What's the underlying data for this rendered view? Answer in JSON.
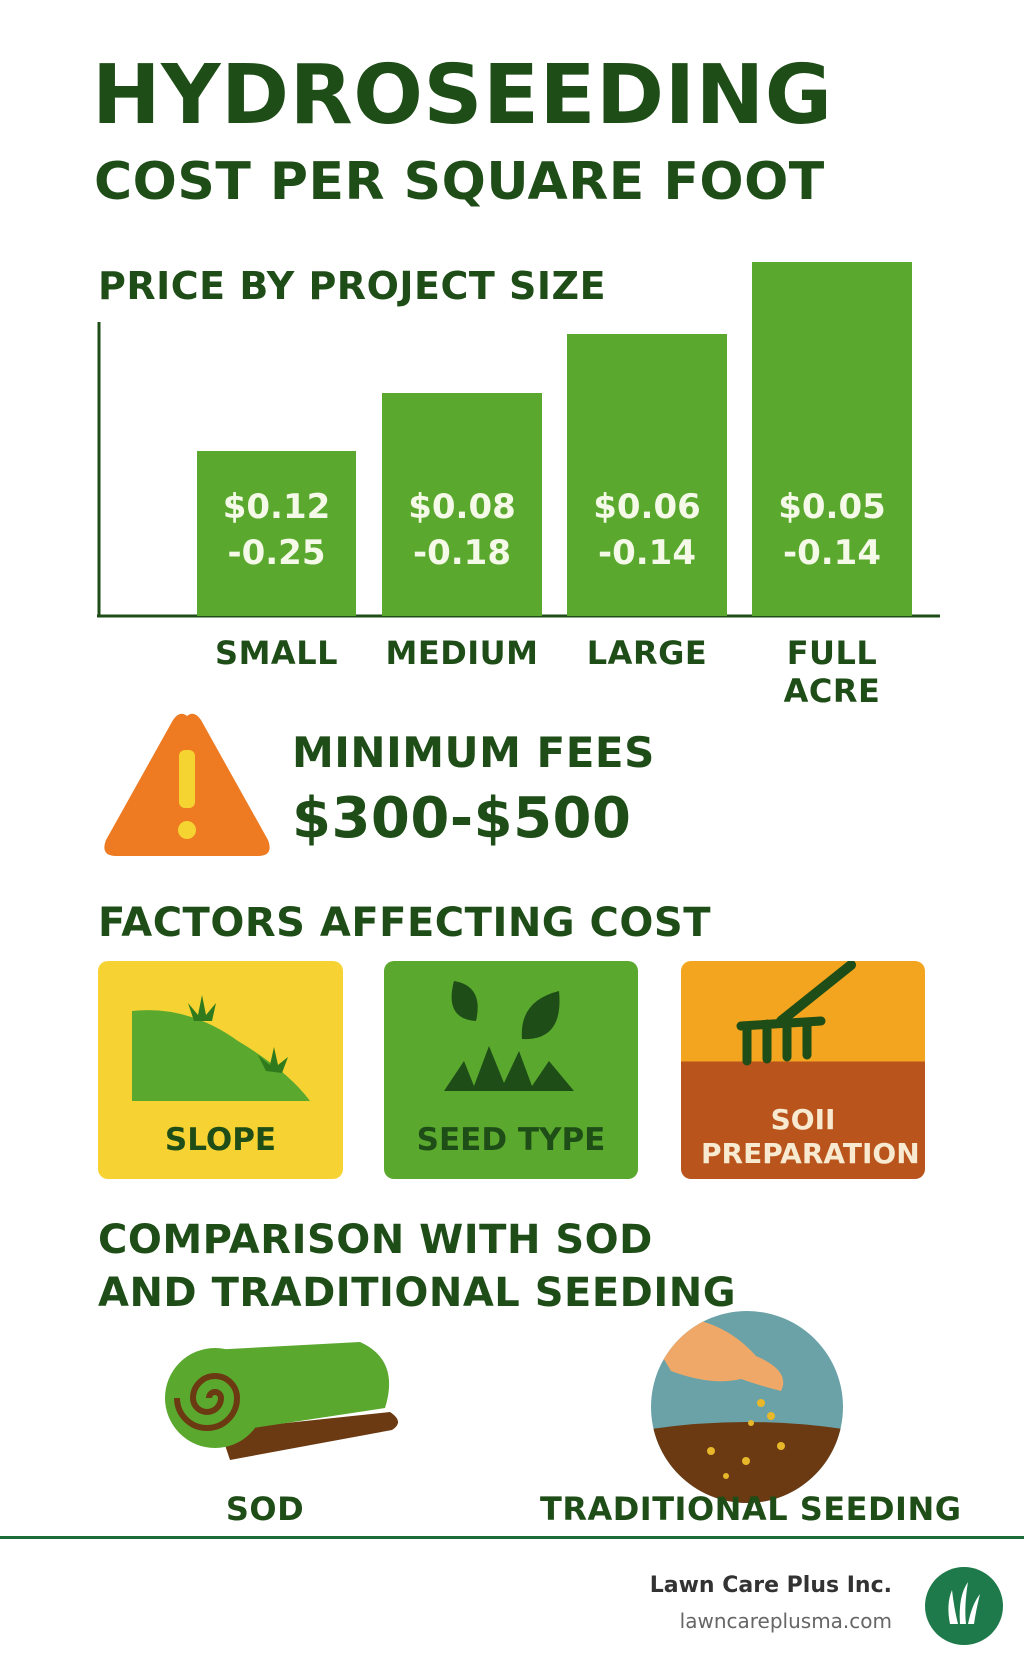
{
  "title": "HYDROSEEDING",
  "subtitle": "COST PER SQUARE FOOT",
  "price_section": {
    "heading": "PRICE BY PROJECT SIZE",
    "bars": [
      {
        "label": "SMALL",
        "price": [
          "$0.12",
          "-0.25"
        ]
      },
      {
        "label": "MEDIUM",
        "price": [
          "$0.08",
          "-0.18"
        ]
      },
      {
        "label": "LARGE",
        "price": [
          "$0.06",
          "-0.14"
        ]
      },
      {
        "label": "FULL ACRE",
        "price": [
          "$0.05",
          "-0.14"
        ]
      }
    ]
  },
  "minimum_fees": {
    "heading": "MINIMUM FEES",
    "value": "$300-$500"
  },
  "factors": {
    "heading": "FACTORS AFFECTING COST",
    "items": [
      "SLOPE",
      "SEED TYPE",
      "SOII PREPARATION"
    ]
  },
  "comparison": {
    "heading": [
      "COMPARISON WITH SOD",
      "AND TRADITIONAL SEEDING"
    ],
    "items": [
      "SOD",
      "TRADITIONAL SEEDING"
    ]
  },
  "footer": {
    "company": "Lawn Care Plus Inc.",
    "url": "lawncareplusma.com"
  }
}
